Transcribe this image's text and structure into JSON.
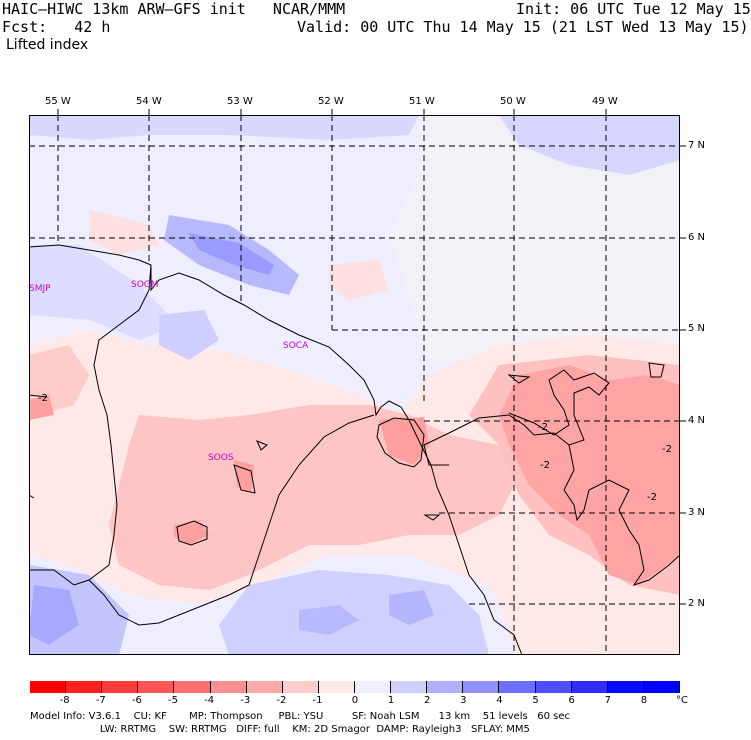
{
  "header": {
    "line1_left": "HAIC–HIWC 13km ARW–GFS init   NCAR/MMM",
    "line1_right": "Init: 06 UTC Tue 12 May 15",
    "line2_left": "Fcst:   42 h",
    "line2_right": "Valid: 00 UTC Thu 14 May 15 (21 LST Wed 13 May 15)",
    "field_name": "Lifted index"
  },
  "longitude_labels": [
    "55 W",
    "54 W",
    "53 W",
    "52 W",
    "51 W",
    "50 W",
    "49 W"
  ],
  "latitude_labels": [
    "7 N",
    "6 N",
    "5 N",
    "4 N",
    "3 N",
    "2 N"
  ],
  "stations": [
    "SMJP",
    "SOGM",
    "SOCA",
    "SOOS"
  ],
  "contour_labels": [
    "-2",
    "-2",
    "-2",
    "-2",
    "-2"
  ],
  "colorbar": {
    "ticks": [
      "-8",
      "-7",
      "-6",
      "-5",
      "-4",
      "-3",
      "-2",
      "-1",
      "0",
      "1",
      "2",
      "3",
      "4",
      "5",
      "6",
      "7",
      "8"
    ],
    "unit": "°C",
    "colors": [
      "#ff0000",
      "#ff2020",
      "#ff3b3b",
      "#ff5555",
      "#ff7070",
      "#ff8e8e",
      "#ffaaaa",
      "#ffcccc",
      "#ffe8e8",
      "#eeeeff",
      "#d0d0ff",
      "#b0b0ff",
      "#9090ff",
      "#6f6fff",
      "#4f4fff",
      "#2e2eff",
      "#0a0aff",
      "#0000ff"
    ]
  },
  "footer": {
    "line1": "Model Info: V3.6.1    CU: KF       MP: Thompson     PBL: YSU         SF: Noah LSM      13 km    51 levels   60 sec",
    "line2": "                      LW: RRTMG    SW: RRTMG   DIFF: full    KM: 2D Smagor  DAMP: Rayleigh3   SFLAY: MM5"
  }
}
